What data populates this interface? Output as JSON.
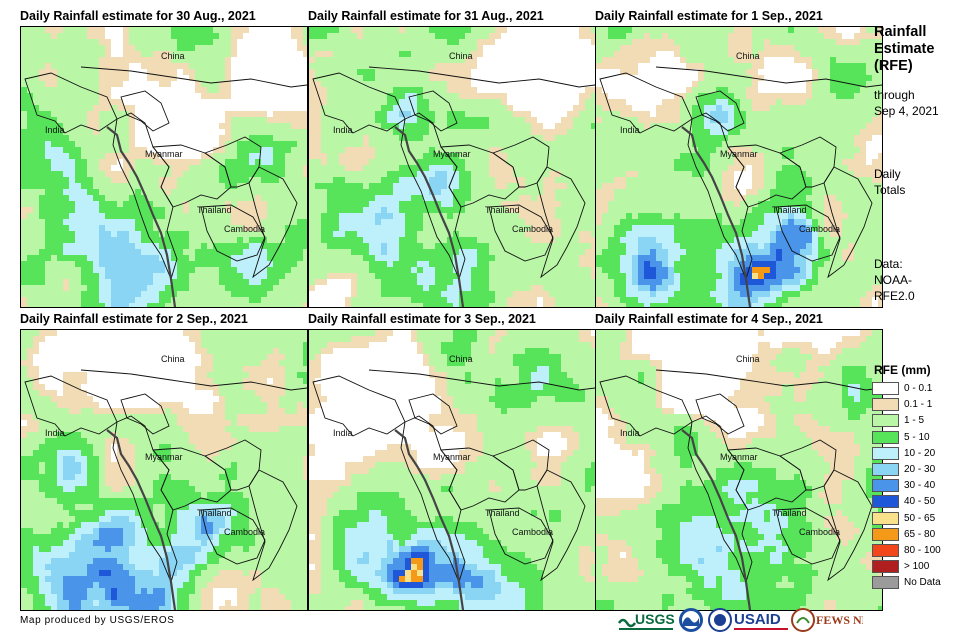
{
  "panels": [
    {
      "title": "Daily Rainfall estimate for 30 Aug., 2021"
    },
    {
      "title": "Daily Rainfall estimate for 31 Aug., 2021"
    },
    {
      "title": "Daily Rainfall estimate for 1 Sep., 2021"
    },
    {
      "title": "Daily Rainfall estimate for 2 Sep., 2021"
    },
    {
      "title": "Daily Rainfall estimate for 3 Sep., 2021"
    },
    {
      "title": "Daily Rainfall estimate for 4 Sep., 2021"
    }
  ],
  "places": {
    "china": "China",
    "india": "India",
    "myanmar": "Myanmar",
    "thailand": "Thailand",
    "cambodia": "Cambodia"
  },
  "sidebar": {
    "title_lines": [
      "Rainfall",
      "Estimate",
      "(RFE)"
    ],
    "through_lines": [
      "through",
      "Sep 4, 2021"
    ],
    "totals_lines": [
      "Daily",
      "Totals"
    ],
    "data_lines": [
      "Data:",
      "NOAA-",
      "RFE2.0"
    ]
  },
  "legend": {
    "title": "RFE (mm)",
    "items": [
      {
        "label": "0 - 0.1",
        "color": "#ffffff"
      },
      {
        "label": "0.1 - 1",
        "color": "#f2dcb6"
      },
      {
        "label": "1 - 5",
        "color": "#b9f7a7"
      },
      {
        "label": "5 - 10",
        "color": "#57e45a"
      },
      {
        "label": "10 - 20",
        "color": "#bdf0fb"
      },
      {
        "label": "20 - 30",
        "color": "#8ad4f4"
      },
      {
        "label": "30 - 40",
        "color": "#4a95ea"
      },
      {
        "label": "40 - 50",
        "color": "#1f57d9"
      },
      {
        "label": "50 - 65",
        "color": "#f9e08a"
      },
      {
        "label": "65 - 80",
        "color": "#f59a18"
      },
      {
        "label": "80 - 100",
        "color": "#f2461b"
      },
      {
        "label": "> 100",
        "color": "#b01f1f"
      },
      {
        "label": "No Data",
        "color": "#9b9b9b"
      }
    ]
  },
  "footer": {
    "credit": "Map produced by USGS/EROS"
  },
  "logos": {
    "usgs": "USGS",
    "usaid": "USAID",
    "fewsnet": "FEWS NET"
  }
}
